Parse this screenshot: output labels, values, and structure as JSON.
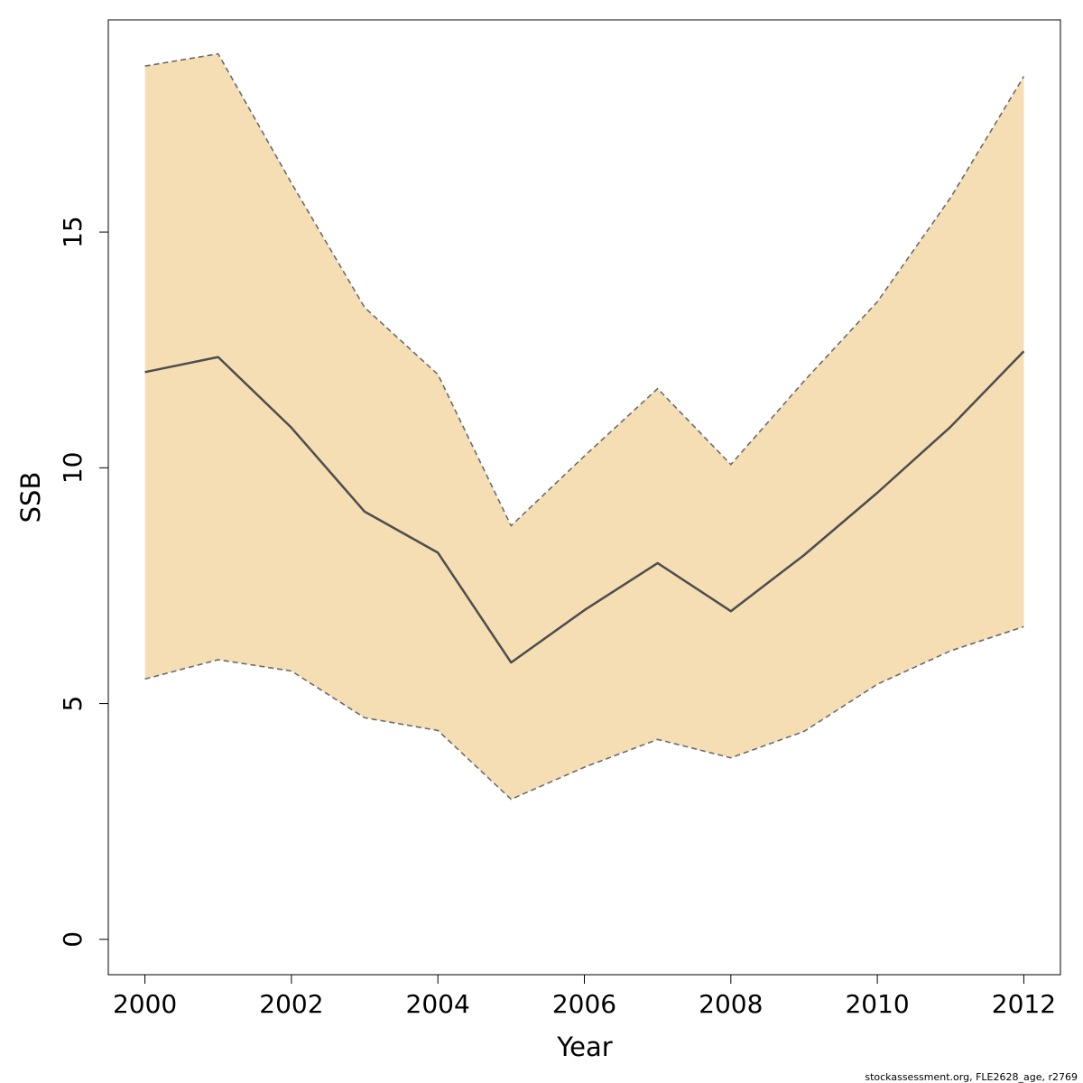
{
  "chart_data": {
    "type": "line",
    "xlabel": "Year",
    "ylabel": "SSB",
    "xlim": [
      1999.5,
      2012.5
    ],
    "ylim": [
      -0.75,
      19.5
    ],
    "xticks": [
      2000,
      2002,
      2004,
      2006,
      2008,
      2010,
      2012
    ],
    "yticks": [
      0,
      5,
      10,
      15
    ],
    "grid": false,
    "x": [
      2000,
      2001,
      2002,
      2003,
      2004,
      2005,
      2006,
      2007,
      2008,
      2009,
      2010,
      2011,
      2012
    ],
    "estimate": [
      12.03,
      12.35,
      10.85,
      9.07,
      8.2,
      5.87,
      6.98,
      7.98,
      6.96,
      8.15,
      9.47,
      10.87,
      12.47
    ],
    "upper": [
      18.52,
      18.78,
      16.04,
      13.4,
      11.98,
      8.77,
      10.25,
      11.68,
      10.07,
      11.84,
      13.52,
      15.73,
      18.3
    ],
    "lower": [
      5.52,
      5.93,
      5.69,
      4.7,
      4.43,
      2.97,
      3.65,
      4.24,
      3.85,
      4.41,
      5.41,
      6.12,
      6.63
    ],
    "colors": {
      "band_fill": "#f5deb3",
      "band_edge": "#6b6b6b",
      "line": "#4d4d4d"
    }
  },
  "footnote": "stockassessment.org, FLE2628_age, r2769"
}
